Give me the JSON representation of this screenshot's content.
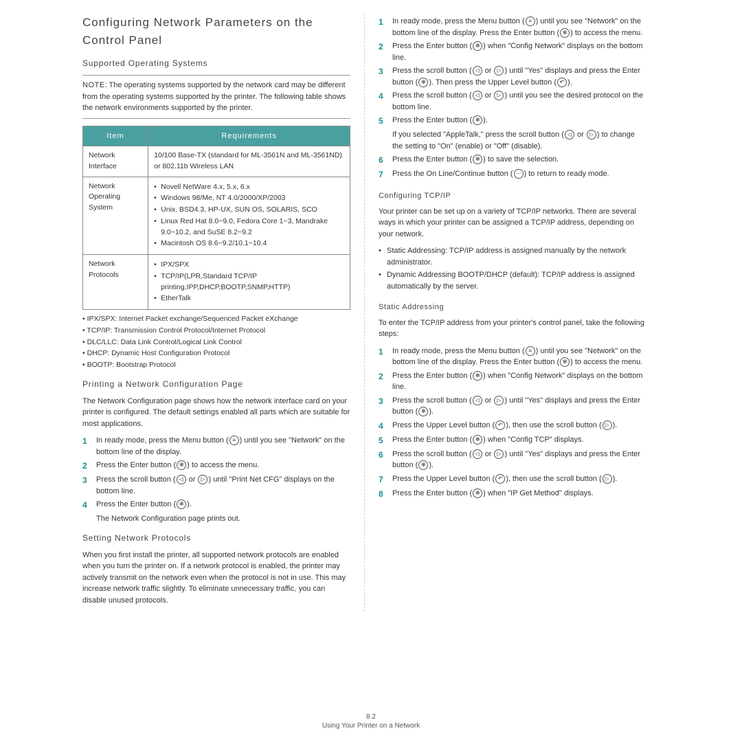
{
  "left": {
    "h1": "Configuring Network Parameters on the Control Panel",
    "h2_os": "Supported Operating Systems",
    "note_label": "NOTE",
    "note_text": ": The operating systems supported by the network card may be different from the operating systems supported by the printer. The following table shows the network environments supported by the printer.",
    "table": {
      "headers": [
        "Item",
        "Requirements"
      ],
      "rows": [
        {
          "item": "Network Interface",
          "req": "10/100 Base-TX (standard for ML-3561N and ML-3561ND) or 802.11b Wireless LAN"
        },
        {
          "item": "Network Operating System",
          "req_list": [
            "Novell NetWare 4.x, 5.x, 6.x",
            "Windows 98/Me, NT 4.0/2000/XP/2003",
            "Unix, BSD4.3, HP-UX, SUN OS, SOLARIS, SCO",
            "Linux Red Hat 8.0~9.0, Fedora Core 1~3, Mandrake 9.0~10.2, and SuSE 8.2~9.2",
            "Macintosh OS 8.6~9.2/10.1~10.4"
          ]
        },
        {
          "item": "Network Protocols",
          "req_list": [
            "IPX/SPX",
            "TCP/IP(LPR,Standard TCP/IP printing,IPP,DHCP,BOOTP,SNMP,HTTP)",
            "EtherTalk"
          ]
        }
      ]
    },
    "defs": [
      "• IPX/SPX: Internet Packet exchange/Sequenced Packet eXchange",
      "• TCP/IP: Transmission Control Protocol/Internet Protocol",
      "• DLC/LLC: Data Link Control/Logical Link Control",
      "• DHCP: Dynamic Host Configuration Protocol",
      "• BOOTP: Bootstrap Protocol"
    ],
    "h2_print": "Printing a Network Configuration Page",
    "print_para": "The Network Configuration page shows how the network interface card on your printer is configured. The default settings enabled all parts which are suitable for most applications.",
    "print_steps": [
      {
        "n": "1",
        "t": "In ready mode, press the Menu button (",
        "i": "≡",
        "t2": ") until you see \"Network\" on the bottom line of the display."
      },
      {
        "n": "2",
        "t": "Press the Enter button (",
        "i": "✻",
        "t2": ") to access the menu."
      },
      {
        "n": "3",
        "t": "Press the scroll button (",
        "i": "◁",
        "t2": " or ",
        "i2": "▷",
        "t3": ") until \"Print Net CFG\" displays on the bottom line."
      },
      {
        "n": "4",
        "t": "Press the Enter button (",
        "i": "✻",
        "t2": ")."
      }
    ],
    "print_out": "The Network Configuration page prints out.",
    "h2_proto": "Setting Network Protocols",
    "proto_para": "When you first install the printer, all supported network protocols are enabled when you turn the printer on. If a network protocol is enabled, the printer may actively transmit on the network even when the protocol is not in use. This may increase network traffic slightly. To eliminate unnecessary traffic, you can disable unused protocols."
  },
  "right": {
    "steps1": [
      {
        "n": "1",
        "html": "In ready mode, press the Menu button (<span class='icon' data-name='menu-icon' data-interactable='false'>≡</span>) until you see \"Network\" on the bottom line of the display. Press the Enter button (<span class='icon' data-name='enter-icon' data-interactable='false'>✻</span>) to access the menu."
      },
      {
        "n": "2",
        "html": "Press the Enter button (<span class='icon' data-name='enter-icon' data-interactable='false'>✻</span>) when \"Config Network\" displays on the bottom line."
      },
      {
        "n": "3",
        "html": "Press the scroll button (<span class='icon' data-name='left-icon' data-interactable='false'>◁</span> or <span class='icon' data-name='right-icon' data-interactable='false'>▷</span>) until \"Yes\" displays and press the Enter button (<span class='icon' data-name='enter-icon' data-interactable='false'>✻</span>). Then press the Upper Level button (<span class='icon' data-name='up-icon' data-interactable='false'>↶</span>)."
      },
      {
        "n": "4",
        "html": "Press the scroll button (<span class='icon' data-name='left-icon' data-interactable='false'>◁</span> or <span class='icon' data-name='right-icon' data-interactable='false'>▷</span>) until you see the desired protocol on the bottom line."
      },
      {
        "n": "5",
        "html": "Press the Enter button (<span class='icon' data-name='enter-icon' data-interactable='false'>✻</span>)."
      }
    ],
    "appletalk": "If you selected \"AppleTalk,\" press the scroll button (<span class='icon' data-name='left-icon' data-interactable='false'>◁</span> or <span class='icon' data-name='right-icon' data-interactable='false'>▷</span>) to change the setting to \"On\" (enable) or \"Off\" (disable).",
    "steps1b": [
      {
        "n": "6",
        "html": "Press the Enter button (<span class='icon' data-name='enter-icon' data-interactable='false'>✻</span>) to save the selection."
      },
      {
        "n": "7",
        "html": "Press the On Line/Continue button (<span class='icon' data-name='online-icon' data-interactable='false'>⋯</span>) to return to ready mode."
      }
    ],
    "h3_tcp": "Configuring TCP/IP",
    "tcp_para": "Your printer can be set up on a variety of TCP/IP networks. There are several ways in which your printer can be assigned a TCP/IP address, depending on your network.",
    "tcp_bul": [
      "Static Addressing: TCP/IP address is assigned manually by the network administrator.",
      "Dynamic Addressing BOOTP/DHCP (default): TCP/IP address is assigned automatically by the server."
    ],
    "h3_static": "Static Addressing",
    "static_para": "To enter the TCP/IP address from your printer's control panel, take the following steps:",
    "steps2": [
      {
        "n": "1",
        "html": "In ready mode, press the Menu button (<span class='icon' data-name='menu-icon' data-interactable='false'>≡</span>) until you see \"Network\" on the bottom line of the display. Press the Enter button (<span class='icon' data-name='enter-icon' data-interactable='false'>✻</span>) to access the menu."
      },
      {
        "n": "2",
        "html": "Press the Enter button (<span class='icon' data-name='enter-icon' data-interactable='false'>✻</span>) when \"Config Network\" displays on the bottom line."
      },
      {
        "n": "3",
        "html": "Press the scroll button (<span class='icon' data-name='left-icon' data-interactable='false'>◁</span> or <span class='icon' data-name='right-icon' data-interactable='false'>▷</span>) until \"Yes\" displays and press the Enter button (<span class='icon' data-name='enter-icon' data-interactable='false'>✻</span>)."
      },
      {
        "n": "4",
        "html": "Press the Upper Level button (<span class='icon' data-name='up-icon' data-interactable='false'>↶</span>), then use the scroll button (<span class='icon' data-name='right-icon' data-interactable='false'>▷</span>)."
      },
      {
        "n": "5",
        "html": "Press the Enter button (<span class='icon' data-name='enter-icon' data-interactable='false'>✻</span>) when \"Config TCP\" displays."
      },
      {
        "n": "6",
        "html": "Press the scroll button (<span class='icon' data-name='left-icon' data-interactable='false'>◁</span> or <span class='icon' data-name='right-icon' data-interactable='false'>▷</span>) until \"Yes\" displays and press the Enter button (<span class='icon' data-name='enter-icon' data-interactable='false'>✻</span>)."
      },
      {
        "n": "7",
        "html": "Press the Upper Level button (<span class='icon' data-name='up-icon' data-interactable='false'>↶</span>), then use the scroll button  (<span class='icon' data-name='right-icon' data-interactable='false'>▷</span>)."
      },
      {
        "n": "8",
        "html": "Press the Enter button (<span class='icon' data-name='enter-icon' data-interactable='false'>✻</span>) when \"IP Get Method\" displays."
      }
    ]
  },
  "footer": {
    "page": "8.2",
    "text": "Using Your Printer on a Network"
  }
}
